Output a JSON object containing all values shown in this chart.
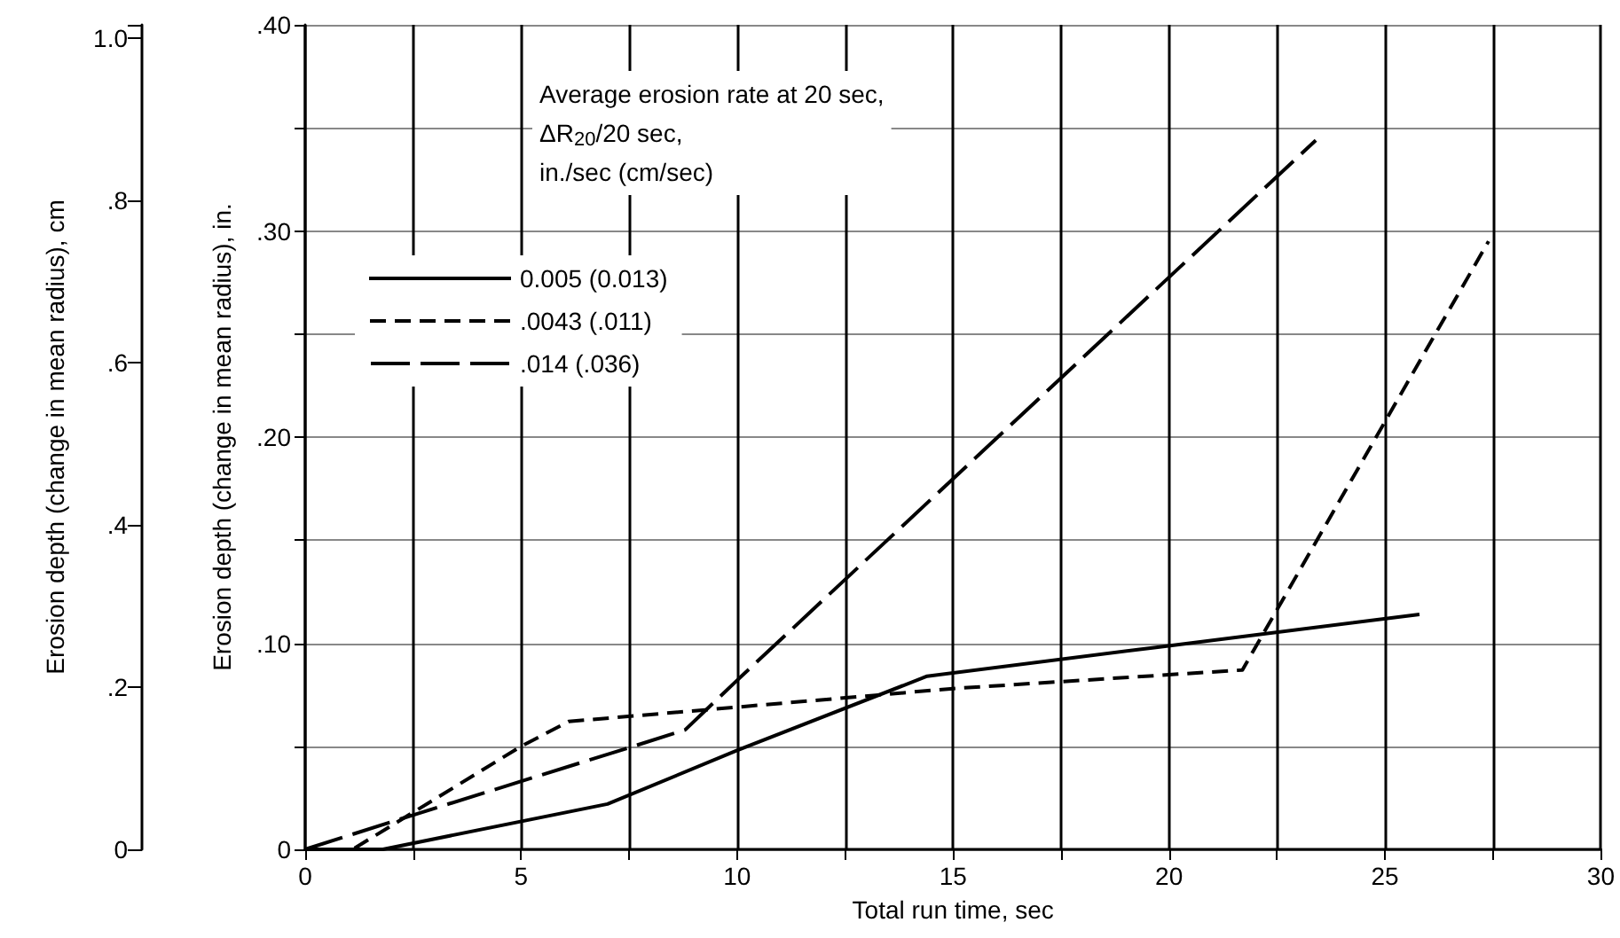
{
  "chart_data": {
    "type": "line",
    "xlabel": "Total run time, sec",
    "ylabel": "Erosion depth (change in mean radius), in.",
    "y2label": "Erosion depth (change in mean radius), cm",
    "legend_title": "Average erosion rate at 20 sec, ΔR$_{20}$/20 sec, in./sec (cm/sec)",
    "series": [
      {
        "name": "0.005 (0.013)",
        "color": "#000000",
        "line_style": "solid",
        "x": [
          0,
          1.8,
          7,
          10,
          14.4,
          19.7,
          25.8
        ],
        "values": [
          0,
          0,
          0.022,
          0.048,
          0.084,
          0.098,
          0.114
        ]
      },
      {
        "name": ".0043 (.011)",
        "color": "#000000",
        "line_style": "dashed",
        "x": [
          0,
          1.1,
          5,
          6.1,
          10,
          15,
          21.7,
          27.4
        ],
        "values": [
          0,
          0,
          0.05,
          0.062,
          0.069,
          0.078,
          0.087,
          0.295
        ]
      },
      {
        "name": ".014 (.036)",
        "color": "#000000",
        "line_style": "longdash",
        "x": [
          0,
          2.4,
          7.6,
          8.8,
          10,
          23.4
        ],
        "values": [
          0,
          0.016,
          0.05,
          0.058,
          0.082,
          0.344
        ]
      }
    ],
    "xlim": [
      0,
      30
    ],
    "xticks": [
      0,
      {
        "value": 2.5,
        "label": null
      },
      5,
      {
        "value": 7.5,
        "label": null
      },
      10,
      {
        "value": 12.5,
        "label": null
      },
      15,
      {
        "value": 17.5,
        "label": null
      },
      20,
      {
        "value": 22.5,
        "label": null
      },
      25,
      {
        "value": 27.5,
        "label": null
      },
      30
    ],
    "ylim": [
      0,
      0.4
    ],
    "yticks": [
      0,
      {
        "value": 0.05,
        "label": null
      },
      {
        "value": 0.1,
        "label": ".10"
      },
      {
        "value": 0.15,
        "label": null
      },
      {
        "value": 0.2,
        "label": ".20"
      },
      {
        "value": 0.25,
        "label": null
      },
      {
        "value": 0.3,
        "label": ".30"
      },
      {
        "value": 0.35,
        "label": null
      },
      {
        "value": 0.4,
        "label": ".40"
      }
    ],
    "y2lim": [
      0,
      1.016
    ],
    "y2ticks": [
      0,
      {
        "value": 0.2,
        "label": ".2"
      },
      {
        "value": 0.4,
        "label": ".4"
      },
      {
        "value": 0.6,
        "label": ".6"
      },
      {
        "value": 0.8,
        "label": ".8"
      },
      {
        "value": 1.0,
        "label": "1.0"
      }
    ],
    "grid": true,
    "legend": "top left",
    "marker": "none"
  }
}
